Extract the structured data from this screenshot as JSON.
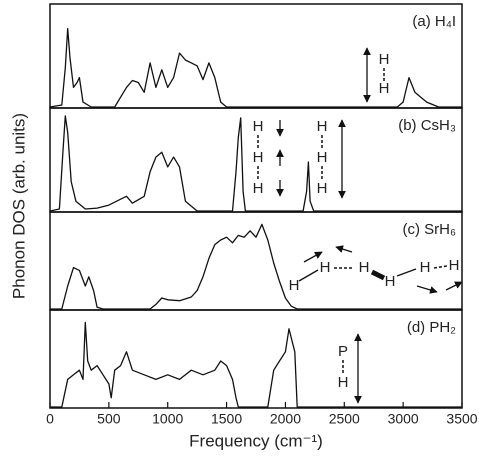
{
  "chart_data": [
    {
      "type": "line",
      "label": "(a) H₄I",
      "ylabel": "Phonon DOS (arb. units)",
      "color": "#111111",
      "diagram_labels": [
        "H",
        "H"
      ],
      "xlim": [
        0,
        3500
      ],
      "ylim": [
        0,
        1
      ],
      "x": [
        0,
        100,
        130,
        150,
        170,
        200,
        230,
        250,
        280,
        350,
        550,
        600,
        650,
        700,
        750,
        800,
        850,
        880,
        900,
        950,
        1000,
        1050,
        1100,
        1150,
        1200,
        1250,
        1300,
        1350,
        1400,
        1450,
        1500,
        2950,
        3000,
        3050,
        3100,
        3150,
        3200,
        3300,
        3500
      ],
      "values": [
        0,
        0.02,
        0.4,
        0.8,
        0.5,
        0.2,
        0.25,
        0.3,
        0.05,
        0,
        0,
        0.1,
        0.2,
        0.27,
        0.25,
        0.15,
        0.45,
        0.3,
        0.2,
        0.38,
        0.2,
        0.3,
        0.55,
        0.48,
        0.45,
        0.42,
        0.28,
        0.45,
        0.3,
        0.05,
        0,
        0,
        0.05,
        0.3,
        0.15,
        0.1,
        0.05,
        0,
        0
      ]
    },
    {
      "type": "line",
      "label": "(b) CsH₃",
      "color": "#111111",
      "diagram_labels": [
        "H",
        "H",
        "H",
        "H",
        "H",
        "H"
      ],
      "xlim": [
        0,
        3500
      ],
      "ylim": [
        0,
        1
      ],
      "x": [
        0,
        80,
        110,
        130,
        150,
        180,
        220,
        300,
        400,
        500,
        600,
        650,
        700,
        800,
        850,
        900,
        950,
        1000,
        1050,
        1100,
        1150,
        1250,
        1550,
        1580,
        1600,
        1620,
        1640,
        1660,
        2150,
        2180,
        2195,
        2210,
        2240,
        3500
      ],
      "values": [
        0,
        0.02,
        0.6,
        0.97,
        0.8,
        0.3,
        0.1,
        0.02,
        0.03,
        0.06,
        0.12,
        0.15,
        0.08,
        0.15,
        0.4,
        0.55,
        0.6,
        0.45,
        0.55,
        0.45,
        0.1,
        0,
        0,
        0.4,
        0.75,
        0.95,
        0.2,
        0,
        0,
        0.2,
        0.5,
        0.1,
        0,
        0
      ]
    },
    {
      "type": "line",
      "label": "(c) SrH₆",
      "color": "#111111",
      "diagram_labels": [
        "H",
        "H",
        "H",
        "H",
        "H",
        "H"
      ],
      "xlim": [
        0,
        3500
      ],
      "ylim": [
        0,
        1
      ],
      "x": [
        0,
        100,
        150,
        200,
        250,
        300,
        330,
        370,
        400,
        450,
        850,
        900,
        950,
        1000,
        1100,
        1200,
        1250,
        1300,
        1350,
        1400,
        1450,
        1500,
        1550,
        1600,
        1650,
        1700,
        1750,
        1800,
        1850,
        1900,
        1950,
        2000,
        2050,
        2100,
        3500
      ],
      "values": [
        0,
        0,
        0.25,
        0.45,
        0.42,
        0.25,
        0.35,
        0.2,
        0.02,
        0,
        0,
        0.05,
        0.12,
        0.1,
        0.09,
        0.13,
        0.2,
        0.35,
        0.55,
        0.7,
        0.75,
        0.78,
        0.72,
        0.8,
        0.78,
        0.85,
        0.78,
        0.92,
        0.75,
        0.5,
        0.3,
        0.12,
        0.03,
        0,
        0
      ]
    },
    {
      "type": "line",
      "label": "(d) PH₂",
      "xlabel": "Frequency (cm⁻¹)",
      "color": "#111111",
      "diagram_labels": [
        "P",
        "H"
      ],
      "xlim": [
        0,
        3500
      ],
      "ylim": [
        0,
        1
      ],
      "xticks": [
        0,
        500,
        1000,
        1500,
        2000,
        2500,
        3000,
        3500
      ],
      "x": [
        0,
        100,
        150,
        200,
        250,
        280,
        300,
        320,
        350,
        400,
        450,
        500,
        520,
        550,
        600,
        650,
        700,
        800,
        900,
        1000,
        1100,
        1200,
        1300,
        1400,
        1450,
        1500,
        1550,
        1580,
        1600,
        1850,
        1900,
        1950,
        2000,
        2030,
        2050,
        2080,
        2100,
        3500
      ],
      "values": [
        0,
        0,
        0.3,
        0.35,
        0.4,
        0.3,
        0.92,
        0.5,
        0.4,
        0.45,
        0.35,
        0.25,
        0.1,
        0.4,
        0.45,
        0.6,
        0.4,
        0.35,
        0.3,
        0.35,
        0.3,
        0.4,
        0.35,
        0.4,
        0.5,
        0.45,
        0.3,
        0.1,
        0,
        0,
        0.4,
        0.5,
        0.6,
        0.85,
        0.75,
        0.6,
        0,
        0
      ]
    }
  ]
}
